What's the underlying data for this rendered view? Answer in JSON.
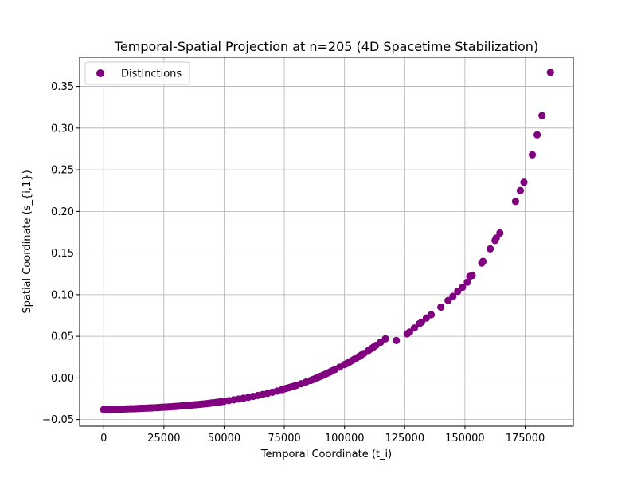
{
  "chart_data": {
    "type": "scatter",
    "title": "Temporal-Spatial Projection at n=205 (4D Spacetime Stabilization)",
    "xlabel": "Temporal Coordinate (t_i)",
    "ylabel": "Spatial Coordinate (s_{i,1})",
    "xlim": [
      -10000,
      195000
    ],
    "ylim": [
      -0.058,
      0.385
    ],
    "xticks": [
      0,
      25000,
      50000,
      75000,
      100000,
      125000,
      150000,
      175000
    ],
    "xtick_labels": [
      "0",
      "25000",
      "50000",
      "75000",
      "100000",
      "125000",
      "150000",
      "175000"
    ],
    "yticks": [
      -0.05,
      0.0,
      0.05,
      0.1,
      0.15,
      0.2,
      0.25,
      0.3,
      0.35
    ],
    "ytick_labels": [
      "−0.05",
      "0.00",
      "0.05",
      "0.10",
      "0.15",
      "0.20",
      "0.25",
      "0.30",
      "0.35"
    ],
    "grid": true,
    "legend_position": "top-left",
    "series": [
      {
        "name": "Distinctions",
        "color": "#800080",
        "marker": "circle",
        "points": [
          [
            0,
            -0.038
          ],
          [
            500,
            -0.038
          ],
          [
            1000,
            -0.038
          ],
          [
            1500,
            -0.038
          ],
          [
            2000,
            -0.038
          ],
          [
            2500,
            -0.038
          ],
          [
            3000,
            -0.038
          ],
          [
            3500,
            -0.0378
          ],
          [
            4000,
            -0.0378
          ],
          [
            4500,
            -0.0377
          ],
          [
            5000,
            -0.0377
          ],
          [
            5500,
            -0.0376
          ],
          [
            6000,
            -0.0376
          ],
          [
            7000,
            -0.0375
          ],
          [
            8000,
            -0.0374
          ],
          [
            9000,
            -0.0373
          ],
          [
            10000,
            -0.0372
          ],
          [
            11000,
            -0.0371
          ],
          [
            12000,
            -0.037
          ],
          [
            13000,
            -0.0369
          ],
          [
            14000,
            -0.0368
          ],
          [
            15000,
            -0.0366
          ],
          [
            16000,
            -0.0365
          ],
          [
            17000,
            -0.0364
          ],
          [
            18000,
            -0.0362
          ],
          [
            19000,
            -0.0361
          ],
          [
            20000,
            -0.036
          ],
          [
            21000,
            -0.0358
          ],
          [
            22000,
            -0.0357
          ],
          [
            23000,
            -0.0355
          ],
          [
            24000,
            -0.0353
          ],
          [
            25000,
            -0.0351
          ],
          [
            26000,
            -0.035
          ],
          [
            27000,
            -0.0348
          ],
          [
            28000,
            -0.0346
          ],
          [
            29000,
            -0.0344
          ],
          [
            30000,
            -0.0342
          ],
          [
            31000,
            -0.034
          ],
          [
            32000,
            -0.0337
          ],
          [
            33000,
            -0.0335
          ],
          [
            34000,
            -0.0333
          ],
          [
            35000,
            -0.033
          ],
          [
            36000,
            -0.0328
          ],
          [
            37000,
            -0.0325
          ],
          [
            38000,
            -0.0322
          ],
          [
            39000,
            -0.032
          ],
          [
            40000,
            -0.0317
          ],
          [
            41000,
            -0.0314
          ],
          [
            42000,
            -0.0311
          ],
          [
            43000,
            -0.0308
          ],
          [
            44000,
            -0.0304
          ],
          [
            45000,
            -0.03
          ],
          [
            46000,
            -0.0297
          ],
          [
            47000,
            -0.0293
          ],
          [
            48000,
            -0.0289
          ],
          [
            49000,
            -0.0285
          ],
          [
            50000,
            -0.028
          ],
          [
            52000,
            -0.0272
          ],
          [
            54000,
            -0.0263
          ],
          [
            56000,
            -0.0254
          ],
          [
            58000,
            -0.0244
          ],
          [
            60000,
            -0.0233
          ],
          [
            62000,
            -0.0222
          ],
          [
            64000,
            -0.0211
          ],
          [
            66000,
            -0.0199
          ],
          [
            68000,
            -0.0186
          ],
          [
            70000,
            -0.0172
          ],
          [
            72000,
            -0.0158
          ],
          [
            74000,
            -0.0141
          ],
          [
            75000,
            -0.0132
          ],
          [
            76000,
            -0.0124
          ],
          [
            77000,
            -0.0116
          ],
          [
            78000,
            -0.0107
          ],
          [
            79000,
            -0.0099
          ],
          [
            80000,
            -0.009
          ],
          [
            82000,
            -0.007
          ],
          [
            84000,
            -0.005
          ],
          [
            86000,
            -0.003
          ],
          [
            87000,
            -0.0018
          ],
          [
            88000,
            -0.0006
          ],
          [
            89000,
            0.0006
          ],
          [
            90000,
            0.0019
          ],
          [
            91000,
            0.0031
          ],
          [
            92000,
            0.0044
          ],
          [
            93000,
            0.0058
          ],
          [
            94000,
            0.0072
          ],
          [
            95000,
            0.0087
          ],
          [
            96000,
            0.01
          ],
          [
            98000,
            0.013
          ],
          [
            100000,
            0.016
          ],
          [
            101000,
            0.0175
          ],
          [
            102000,
            0.019
          ],
          [
            103000,
            0.0207
          ],
          [
            104000,
            0.0224
          ],
          [
            105000,
            0.024
          ],
          [
            106000,
            0.0257
          ],
          [
            107000,
            0.0275
          ],
          [
            108000,
            0.0293
          ],
          [
            110000,
            0.033
          ],
          [
            111000,
            0.035
          ],
          [
            112000,
            0.037
          ],
          [
            113000,
            0.039
          ],
          [
            115000,
            0.043
          ],
          [
            117000,
            0.047
          ],
          [
            121500,
            0.045
          ],
          [
            126000,
            0.053
          ],
          [
            127000,
            0.055
          ],
          [
            129000,
            0.06
          ],
          [
            131000,
            0.065
          ],
          [
            132000,
            0.067
          ],
          [
            134000,
            0.072
          ],
          [
            136000,
            0.076
          ],
          [
            140000,
            0.085
          ],
          [
            143000,
            0.093
          ],
          [
            145000,
            0.098
          ],
          [
            147000,
            0.104
          ],
          [
            149000,
            0.109
          ],
          [
            151000,
            0.115
          ],
          [
            152000,
            0.122
          ],
          [
            153000,
            0.123
          ],
          [
            157000,
            0.138
          ],
          [
            157500,
            0.14
          ],
          [
            160500,
            0.155
          ],
          [
            162500,
            0.165
          ],
          [
            163000,
            0.168
          ],
          [
            164500,
            0.174
          ],
          [
            171000,
            0.212
          ],
          [
            173000,
            0.225
          ],
          [
            174500,
            0.235
          ],
          [
            178000,
            0.268
          ],
          [
            180000,
            0.292
          ],
          [
            182000,
            0.315
          ],
          [
            185500,
            0.367
          ]
        ]
      }
    ]
  }
}
